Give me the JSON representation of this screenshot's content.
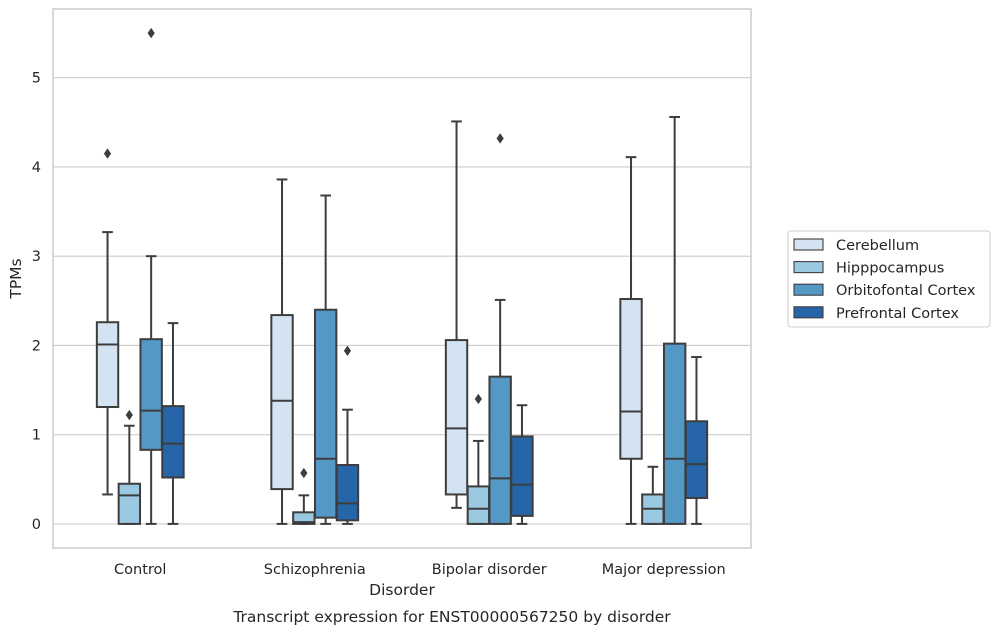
{
  "chart_data": {
    "type": "box",
    "title": "",
    "caption": "Transcript expression for ENST00000567250 by disorder",
    "xlabel": "Disorder",
    "ylabel": "TPMs",
    "ylim": [
      -0.27,
      5.77
    ],
    "yticks": [
      0,
      1,
      2,
      3,
      4,
      5
    ],
    "grid": "horizontal",
    "legend_position": "right",
    "categories": [
      "Control",
      "Schizophrenia",
      "Bipolar disorder",
      "Major depression"
    ],
    "series": [
      {
        "name": "Cerebellum",
        "color": "#d3e3f2",
        "boxes": [
          {
            "whislo": 0.33,
            "q1": 1.31,
            "med": 2.01,
            "q3": 2.26,
            "whishi": 3.27,
            "fliers": [
              4.15
            ]
          },
          {
            "whislo": 0.0,
            "q1": 0.39,
            "med": 1.38,
            "q3": 2.34,
            "whishi": 3.86,
            "fliers": []
          },
          {
            "whislo": 0.18,
            "q1": 0.33,
            "med": 1.07,
            "q3": 2.06,
            "whishi": 4.51,
            "fliers": []
          },
          {
            "whislo": 0.0,
            "q1": 0.73,
            "med": 1.26,
            "q3": 2.52,
            "whishi": 4.11,
            "fliers": []
          }
        ]
      },
      {
        "name": "Hipppocampus",
        "color": "#9ac8e0",
        "boxes": [
          {
            "whislo": 0.0,
            "q1": 0.0,
            "med": 0.32,
            "q3": 0.45,
            "whishi": 1.1,
            "fliers": [
              1.22
            ]
          },
          {
            "whislo": 0.0,
            "q1": 0.0,
            "med": 0.02,
            "q3": 0.13,
            "whishi": 0.32,
            "fliers": [
              0.57
            ]
          },
          {
            "whislo": 0.0,
            "q1": 0.0,
            "med": 0.17,
            "q3": 0.42,
            "whishi": 0.93,
            "fliers": [
              1.4
            ]
          },
          {
            "whislo": 0.0,
            "q1": 0.0,
            "med": 0.17,
            "q3": 0.33,
            "whishi": 0.64,
            "fliers": []
          }
        ]
      },
      {
        "name": "Orbitofontal Cortex",
        "color": "#5498c6",
        "boxes": [
          {
            "whislo": 0.0,
            "q1": 0.83,
            "med": 1.27,
            "q3": 2.07,
            "whishi": 3.0,
            "fliers": [
              5.5
            ]
          },
          {
            "whislo": 0.0,
            "q1": 0.07,
            "med": 0.73,
            "q3": 2.4,
            "whishi": 3.68,
            "fliers": []
          },
          {
            "whislo": 0.0,
            "q1": 0.0,
            "med": 0.51,
            "q3": 1.65,
            "whishi": 2.51,
            "fliers": [
              4.32
            ]
          },
          {
            "whislo": 0.0,
            "q1": 0.0,
            "med": 0.73,
            "q3": 2.02,
            "whishi": 4.56,
            "fliers": []
          }
        ]
      },
      {
        "name": "Prefrontal Cortex",
        "color": "#2565a8",
        "boxes": [
          {
            "whislo": 0.0,
            "q1": 0.52,
            "med": 0.9,
            "q3": 1.32,
            "whishi": 2.25,
            "fliers": []
          },
          {
            "whislo": 0.0,
            "q1": 0.04,
            "med": 0.23,
            "q3": 0.66,
            "whishi": 1.28,
            "fliers": [
              1.94
            ]
          },
          {
            "whislo": 0.0,
            "q1": 0.09,
            "med": 0.44,
            "q3": 0.98,
            "whishi": 1.33,
            "fliers": []
          },
          {
            "whislo": 0.0,
            "q1": 0.29,
            "med": 0.67,
            "q3": 1.15,
            "whishi": 1.87,
            "fliers": []
          }
        ]
      }
    ]
  }
}
